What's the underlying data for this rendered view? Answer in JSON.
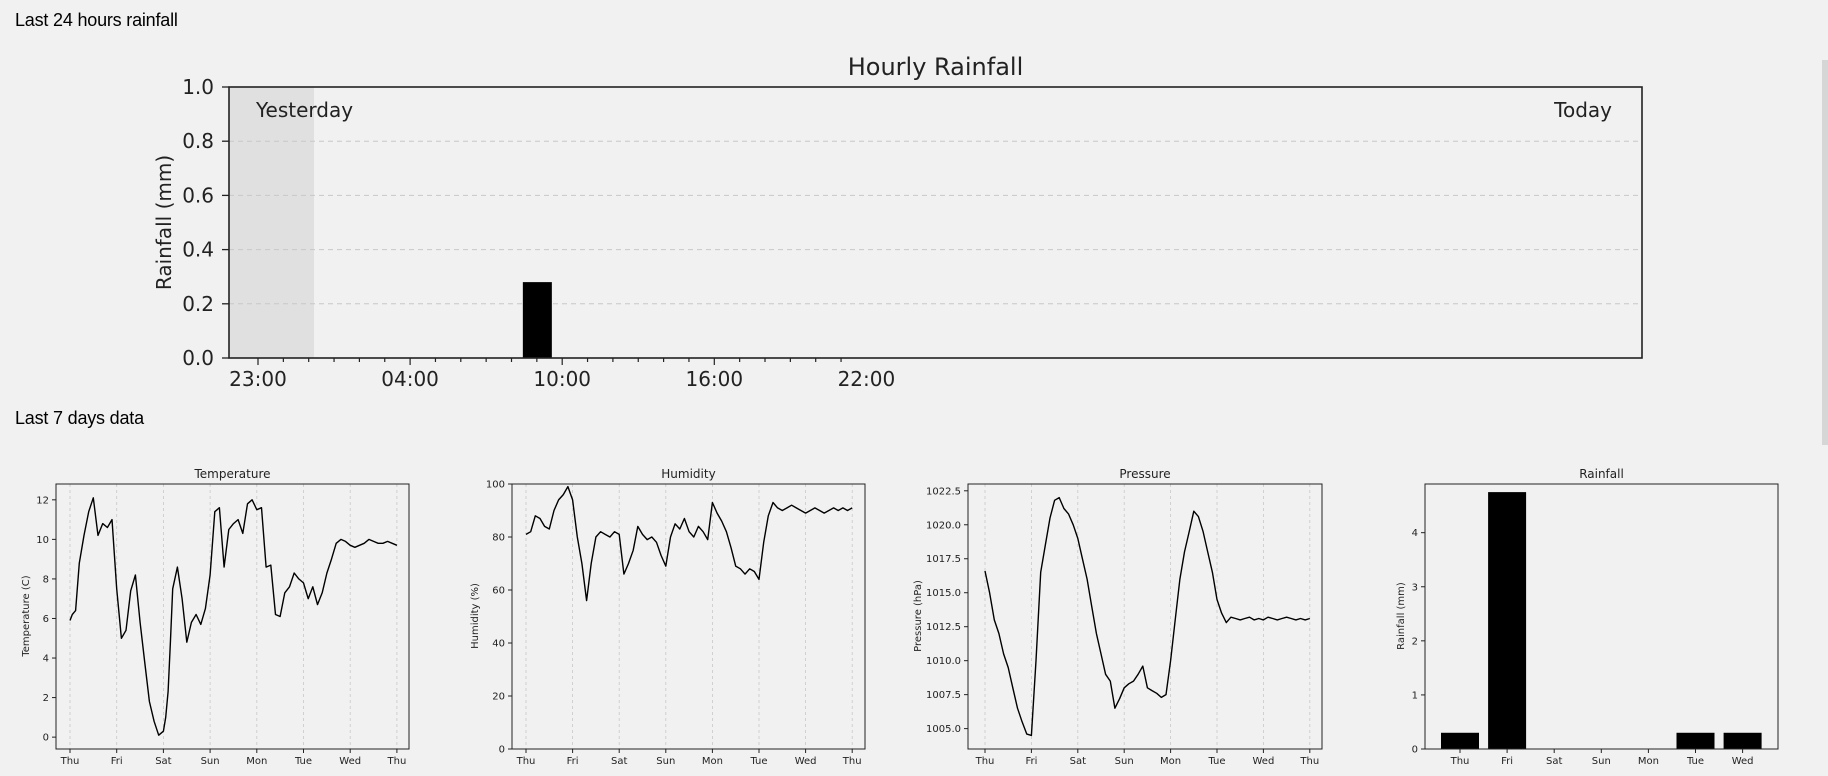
{
  "page": {
    "heading_24h": "Last 24 hours rainfall",
    "heading_7d": "Last 7 days data"
  },
  "colors": {
    "background": "#f1f1f1",
    "bar": "#000000",
    "line": "#000000",
    "yesterday_shade": "#e0e0e0",
    "grid": "#c8c8c8"
  },
  "chart_data": [
    {
      "type": "bar",
      "title": "Hourly Rainfall",
      "xlabel": "",
      "ylabel": "Rainfall (mm)",
      "ylim": [
        0,
        1.0
      ],
      "yticks": [
        "0.0",
        "0.2",
        "0.4",
        "0.6",
        "0.8",
        "1.0"
      ],
      "xticks": [
        "23:00",
        "04:00",
        "10:00",
        "16:00",
        "22:00"
      ],
      "grid": "horizontal dashed",
      "annotations": [
        "Yesterday",
        "Today"
      ],
      "hours": [
        "23:00",
        "00:00",
        "01:00",
        "02:00",
        "03:00",
        "04:00",
        "05:00",
        "06:00",
        "07:00",
        "08:00",
        "09:00",
        "10:00",
        "11:00",
        "12:00",
        "13:00",
        "14:00",
        "15:00",
        "16:00",
        "17:00",
        "18:00",
        "19:00",
        "20:00",
        "21:00",
        "22:00"
      ],
      "values": [
        0,
        0,
        0,
        0,
        0,
        0,
        0,
        0,
        0,
        0,
        0,
        0.28,
        0,
        0,
        0,
        0,
        0,
        0,
        0,
        0,
        0,
        0,
        0,
        0
      ],
      "shaded": "Yesterday"
    },
    {
      "type": "line",
      "title": "Temperature",
      "ylabel": "Temperature (C)",
      "ylim": [
        -0.6,
        12.8
      ],
      "yticks": [
        "0",
        "2",
        "4",
        "6",
        "8",
        "10",
        "12"
      ],
      "xticks": [
        "Thu",
        "Fri",
        "Sat",
        "Sun",
        "Mon",
        "Tue",
        "Wed",
        "Thu"
      ],
      "grid": "vertical dashed",
      "x": [
        0,
        0.05,
        0.12,
        0.2,
        0.3,
        0.4,
        0.5,
        0.6,
        0.7,
        0.8,
        0.9,
        1.0,
        1.1,
        1.2,
        1.3,
        1.4,
        1.5,
        1.6,
        1.7,
        1.8,
        1.9,
        2.0,
        2.05,
        2.1,
        2.15,
        2.2,
        2.3,
        2.4,
        2.5,
        2.6,
        2.7,
        2.8,
        2.9,
        3.0,
        3.1,
        3.2,
        3.3,
        3.4,
        3.5,
        3.6,
        3.7,
        3.8,
        3.9,
        4.0,
        4.1,
        4.2,
        4.3,
        4.4,
        4.5,
        4.6,
        4.7,
        4.8,
        4.9,
        5.0,
        5.1,
        5.2,
        5.3,
        5.4,
        5.5,
        5.6,
        5.7,
        5.8,
        5.9,
        6.0,
        6.1,
        6.2,
        6.3,
        6.4,
        6.5,
        6.6,
        6.7,
        6.8,
        6.9,
        7.0
      ],
      "y": [
        5.9,
        6.2,
        6.4,
        8.8,
        10.2,
        11.4,
        12.1,
        10.2,
        10.8,
        10.6,
        11.0,
        7.5,
        5.0,
        5.4,
        7.4,
        8.2,
        5.8,
        3.8,
        1.8,
        0.8,
        0.1,
        0.3,
        1.0,
        2.3,
        4.8,
        7.5,
        8.6,
        7.0,
        4.8,
        5.8,
        6.2,
        5.7,
        6.5,
        8.2,
        11.4,
        11.6,
        8.6,
        10.5,
        10.8,
        11.0,
        10.3,
        11.8,
        12.0,
        11.5,
        11.6,
        8.6,
        8.7,
        6.2,
        6.1,
        7.3,
        7.6,
        8.3,
        8.0,
        7.8,
        7.0,
        7.6,
        6.7,
        7.3,
        8.3,
        9.0,
        9.8,
        10.0,
        9.9,
        9.7,
        9.6,
        9.7,
        9.8,
        10.0,
        9.9,
        9.8,
        9.8,
        9.9,
        9.8,
        9.7
      ]
    },
    {
      "type": "line",
      "title": "Humidity",
      "ylabel": "Humidity (%)",
      "ylim": [
        0,
        100
      ],
      "yticks": [
        "0",
        "20",
        "40",
        "60",
        "80",
        "100"
      ],
      "xticks": [
        "Thu",
        "Fri",
        "Sat",
        "Sun",
        "Mon",
        "Tue",
        "Wed",
        "Thu"
      ],
      "grid": "vertical dashed",
      "x": [
        0,
        0.1,
        0.2,
        0.3,
        0.4,
        0.5,
        0.6,
        0.7,
        0.8,
        0.9,
        1.0,
        1.1,
        1.2,
        1.3,
        1.4,
        1.5,
        1.6,
        1.7,
        1.8,
        1.9,
        2.0,
        2.1,
        2.2,
        2.3,
        2.4,
        2.5,
        2.6,
        2.7,
        2.8,
        2.9,
        3.0,
        3.1,
        3.2,
        3.3,
        3.4,
        3.5,
        3.6,
        3.7,
        3.8,
        3.9,
        4.0,
        4.1,
        4.2,
        4.3,
        4.4,
        4.5,
        4.6,
        4.7,
        4.8,
        4.9,
        5.0,
        5.1,
        5.2,
        5.3,
        5.4,
        5.5,
        5.6,
        5.7,
        5.8,
        5.9,
        6.0,
        6.1,
        6.2,
        6.3,
        6.4,
        6.5,
        6.6,
        6.7,
        6.8,
        6.9,
        7.0
      ],
      "y": [
        81,
        82,
        88,
        87,
        84,
        83,
        90,
        94,
        96,
        99,
        94,
        80,
        70,
        56,
        70,
        80,
        82,
        81,
        80,
        82,
        81,
        66,
        70,
        75,
        84,
        81,
        79,
        80,
        78,
        73,
        69,
        80,
        85,
        83,
        87,
        82,
        80,
        84,
        82,
        79,
        93,
        89,
        86,
        82,
        76,
        69,
        68,
        66,
        68,
        67,
        64,
        78,
        88,
        93,
        91,
        90,
        91,
        92,
        91,
        90,
        89,
        90,
        91,
        90,
        89,
        90,
        91,
        90,
        91,
        90,
        91
      ]
    },
    {
      "type": "line",
      "title": "Pressure",
      "ylabel": "Pressure (hPa)",
      "ylim": [
        1003.5,
        1023.0
      ],
      "yticks": [
        "1005.0",
        "1007.5",
        "1010.0",
        "1012.5",
        "1015.0",
        "1017.5",
        "1020.0",
        "1022.5"
      ],
      "xticks": [
        "Thu",
        "Fri",
        "Sat",
        "Sun",
        "Mon",
        "Tue",
        "Wed",
        "Thu"
      ],
      "grid": "vertical dashed",
      "x": [
        0,
        0.1,
        0.2,
        0.3,
        0.4,
        0.5,
        0.6,
        0.7,
        0.8,
        0.9,
        1.0,
        1.1,
        1.2,
        1.3,
        1.4,
        1.5,
        1.6,
        1.7,
        1.8,
        1.9,
        2.0,
        2.1,
        2.2,
        2.3,
        2.4,
        2.5,
        2.6,
        2.7,
        2.8,
        2.9,
        3.0,
        3.1,
        3.2,
        3.3,
        3.4,
        3.5,
        3.6,
        3.7,
        3.8,
        3.9,
        4.0,
        4.1,
        4.2,
        4.3,
        4.4,
        4.5,
        4.6,
        4.7,
        4.8,
        4.9,
        5.0,
        5.1,
        5.2,
        5.3,
        5.4,
        5.5,
        5.6,
        5.7,
        5.8,
        5.9,
        6.0,
        6.1,
        6.2,
        6.3,
        6.4,
        6.5,
        6.6,
        6.7,
        6.8,
        6.9,
        7.0
      ],
      "y": [
        1016.6,
        1015.0,
        1013.0,
        1012.0,
        1010.5,
        1009.5,
        1008.0,
        1006.5,
        1005.5,
        1004.6,
        1004.5,
        1010.0,
        1016.5,
        1018.5,
        1020.5,
        1021.8,
        1022.0,
        1021.2,
        1020.8,
        1020.0,
        1019.0,
        1017.5,
        1016.0,
        1014.0,
        1012.0,
        1010.5,
        1009.0,
        1008.5,
        1006.5,
        1007.2,
        1008.0,
        1008.3,
        1008.5,
        1009.0,
        1009.6,
        1008.0,
        1007.8,
        1007.6,
        1007.3,
        1007.5,
        1010.0,
        1013.0,
        1016.0,
        1018.0,
        1019.5,
        1021.0,
        1020.6,
        1019.5,
        1018.0,
        1016.5,
        1014.5,
        1013.5,
        1012.8,
        1013.2,
        1013.1,
        1013.0,
        1013.1,
        1013.2,
        1013.0,
        1013.1,
        1013.0,
        1013.2,
        1013.1,
        1013.0,
        1013.1,
        1013.2,
        1013.1,
        1013.0,
        1013.1,
        1013.0,
        1013.1
      ]
    },
    {
      "type": "bar",
      "title": "Rainfall",
      "ylabel": "Rainfall (mm)",
      "ylim": [
        0,
        4.9
      ],
      "yticks": [
        "0",
        "1",
        "2",
        "3",
        "4"
      ],
      "categories": [
        "Thu",
        "Fri",
        "Sat",
        "Sun",
        "Mon",
        "Tue",
        "Wed"
      ],
      "values": [
        0.3,
        4.75,
        0,
        0,
        0,
        0.3,
        0.3
      ]
    }
  ]
}
